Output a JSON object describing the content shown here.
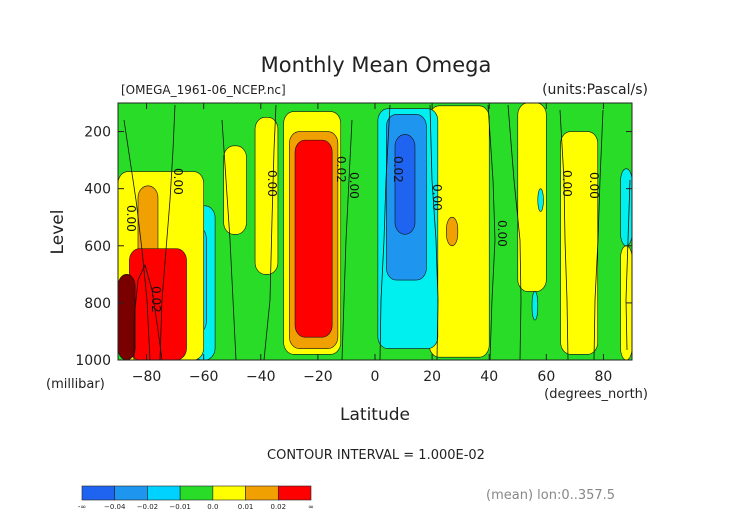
{
  "colors": {
    "dark_blue": "#1e64f0",
    "blue": "#1e96f0",
    "light_blue": "#00d2ff",
    "cyan": "#00f0f0",
    "green": "#28dc28",
    "yellow": "#ffff00",
    "orange": "#f0a000",
    "red": "#ff0000",
    "maroon": "#7a0000"
  },
  "chart_data": {
    "type": "heatmap",
    "title": "Monthly Mean Omega",
    "file_label": "[OMEGA_1961-06_NCEP.nc]",
    "units_label": "(units:Pascal/s)",
    "xlabel": "Latitude",
    "x_units": "(degrees_north)",
    "ylabel": "Level",
    "y_units": "(millibar)",
    "xlim": [
      -90,
      90
    ],
    "ylim": [
      1000,
      100
    ],
    "x_ticks": [
      -80,
      -60,
      -40,
      -20,
      0,
      20,
      40,
      60,
      80
    ],
    "y_ticks": [
      200,
      400,
      600,
      800,
      1000
    ],
    "contour_interval_text": "CONTOUR INTERVAL = 1.000E-02",
    "contour_levels": [
      -0.04,
      -0.02,
      -0.01,
      0.0,
      0.01,
      0.02
    ],
    "contour_labels": [
      "0.00",
      "0.00",
      "0.00",
      "0.02",
      "0.02",
      "0.00",
      "0.00",
      "0.00",
      "0.00",
      "0.00",
      "0.02"
    ],
    "footer_text": "(mean) lon:0..357.5",
    "colorbar": {
      "labels": [
        "-∞",
        "−0.04",
        "−0.02",
        "−0.01",
        "0.0",
        "0.01",
        "0.02",
        "∞"
      ],
      "colors": [
        "#1e64f0",
        "#1e96f0",
        "#00d2ff",
        "#28dc28",
        "#ffff00",
        "#f0a000",
        "#ff0000"
      ]
    },
    "regions": [
      {
        "category": "yellow",
        "x": [
          -53,
          -45
        ],
        "y": [
          250,
          560
        ]
      },
      {
        "category": "yellow",
        "x": [
          -42,
          -34
        ],
        "y": [
          150,
          700
        ]
      },
      {
        "category": "yellow",
        "x": [
          -32,
          -12
        ],
        "y": [
          130,
          980
        ]
      },
      {
        "category": "orange",
        "x": [
          -30,
          -13
        ],
        "y": [
          200,
          960
        ]
      },
      {
        "category": "red",
        "x": [
          -28,
          -15
        ],
        "y": [
          230,
          920
        ]
      },
      {
        "category": "yellow",
        "x": [
          19,
          40
        ],
        "y": [
          110,
          990
        ]
      },
      {
        "category": "orange",
        "x": [
          25,
          29
        ],
        "y": [
          500,
          600
        ]
      },
      {
        "category": "yellow",
        "x": [
          50,
          60
        ],
        "y": [
          100,
          760
        ]
      },
      {
        "category": "yellow",
        "x": [
          65,
          78
        ],
        "y": [
          200,
          980
        ]
      },
      {
        "category": "cyan",
        "x": [
          -64,
          -56
        ],
        "y": [
          460,
          1000
        ]
      },
      {
        "category": "light_blue",
        "x": [
          -63,
          -59
        ],
        "y": [
          540,
          900
        ]
      },
      {
        "category": "cyan",
        "x": [
          1,
          22
        ],
        "y": [
          120,
          960
        ]
      },
      {
        "category": "blue",
        "x": [
          4,
          18
        ],
        "y": [
          140,
          720
        ]
      },
      {
        "category": "dark_blue",
        "x": [
          7,
          14
        ],
        "y": [
          210,
          560
        ]
      },
      {
        "category": "yellow",
        "x": [
          -90,
          -60
        ],
        "y": [
          340,
          1000
        ]
      },
      {
        "category": "orange",
        "x": [
          -83,
          -76
        ],
        "y": [
          390,
          860
        ]
      },
      {
        "category": "red",
        "x": [
          -86,
          -66
        ],
        "y": [
          610,
          1000
        ]
      },
      {
        "category": "maroon",
        "x": [
          -90,
          -84
        ],
        "y": [
          700,
          1000
        ]
      },
      {
        "category": "cyan",
        "x": [
          86,
          90
        ],
        "y": [
          330,
          600
        ]
      },
      {
        "category": "yellow",
        "x": [
          86,
          90
        ],
        "y": [
          600,
          1000
        ]
      },
      {
        "category": "cyan",
        "x": [
          57,
          59
        ],
        "y": [
          400,
          480
        ]
      },
      {
        "category": "cyan",
        "x": [
          55,
          57
        ],
        "y": [
          760,
          860
        ]
      }
    ]
  }
}
